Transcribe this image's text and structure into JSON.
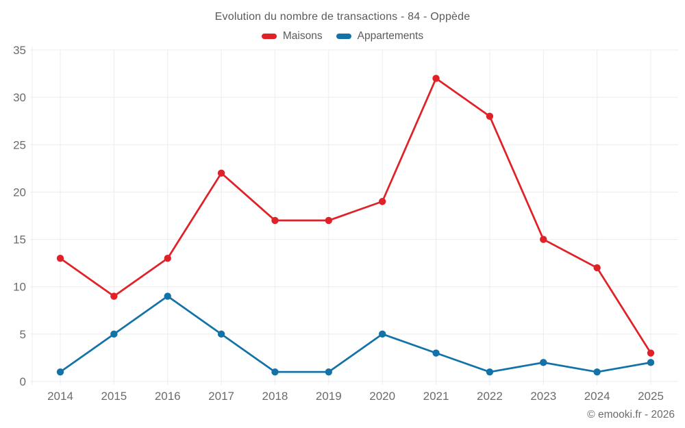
{
  "footer": {
    "credit": "© emooki.fr - 2026"
  },
  "chart_data": {
    "type": "line",
    "title": "Evolution du nombre de transactions - 84 - Oppède",
    "categories": [
      "2014",
      "2015",
      "2016",
      "2017",
      "2018",
      "2019",
      "2020",
      "2021",
      "2022",
      "2023",
      "2024",
      "2025"
    ],
    "series": [
      {
        "name": "Maisons",
        "color": "#e02128",
        "values": [
          13,
          9,
          13,
          22,
          17,
          17,
          19,
          32,
          28,
          15,
          12,
          3
        ]
      },
      {
        "name": "Appartements",
        "color": "#1372a8",
        "values": [
          1,
          5,
          9,
          5,
          1,
          1,
          5,
          3,
          1,
          2,
          1,
          2
        ]
      }
    ],
    "xlabel": "",
    "ylabel": "",
    "ylim": [
      0,
      35
    ],
    "yticks": [
      0,
      5,
      10,
      15,
      20,
      25,
      30,
      35
    ],
    "grid": true,
    "legend_position": "top",
    "grid_color": "#ececec",
    "tick_color": "#6a6b6e",
    "text_color": "#595a5c",
    "background": "#ffffff"
  }
}
